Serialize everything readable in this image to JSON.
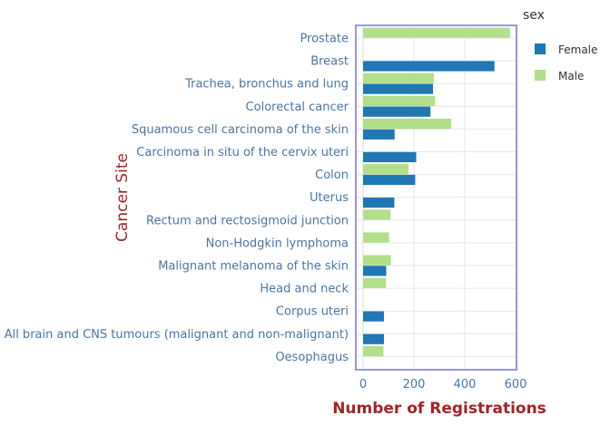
{
  "chart_data": {
    "type": "bar",
    "orientation": "horizontal",
    "barmode": "group",
    "title": "",
    "xlabel": "Number of Registrations",
    "ylabel": "Cancer Site",
    "xlim": [
      0,
      600
    ],
    "x_ticks": [
      0,
      200,
      400,
      600
    ],
    "x_tick_labels": [
      "0",
      "200",
      "400",
      "600"
    ],
    "grid": true,
    "legend": {
      "title": "sex",
      "position": "top-right"
    },
    "categories": [
      "Prostate",
      "Breast",
      "Trachea, bronchus and lung",
      "Colorectal cancer",
      "Squamous cell carcinoma of the skin",
      "Carcinoma in situ of the cervix uteri",
      "Colon",
      "Uterus",
      "Rectum and rectosigmoid junction",
      "Non-Hodgkin lymphoma",
      "Malignant melanoma of the skin",
      "Head and neck",
      "Corpus uteri",
      "All brain and CNS tumours (malignant and non-malignant)",
      "Oesophagus"
    ],
    "series": [
      {
        "name": "Female",
        "color": "#1f77b4",
        "values": [
          0,
          517,
          275,
          265,
          124,
          209,
          205,
          123,
          0,
          0,
          91,
          0,
          82,
          82,
          0
        ]
      },
      {
        "name": "Male",
        "color": "#b2df8a",
        "values": [
          578,
          0,
          278,
          283,
          346,
          0,
          179,
          0,
          108,
          102,
          109,
          90,
          0,
          0,
          80
        ]
      }
    ]
  }
}
